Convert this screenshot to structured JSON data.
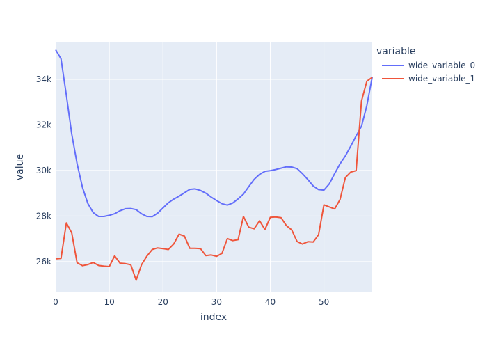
{
  "chart_data": {
    "type": "line",
    "xlabel": "index",
    "ylabel": "value",
    "xlim": [
      0,
      59
    ],
    "ylim": [
      24650,
      35650
    ],
    "x_ticks": [
      0,
      10,
      20,
      30,
      40,
      50
    ],
    "x_tick_labels": [
      "0",
      "10",
      "20",
      "30",
      "40",
      "50"
    ],
    "y_ticks": [
      26000,
      28000,
      30000,
      32000,
      34000
    ],
    "y_tick_labels": [
      "26k",
      "28k",
      "30k",
      "32k",
      "34k"
    ],
    "grid": true,
    "legend": {
      "title": "variable",
      "position": "right"
    },
    "colors": {
      "plot_bg": "#E5ECF6",
      "grid": "#ffffff",
      "text": "#2a3f5f"
    },
    "series": [
      {
        "name": "wide_variable_0",
        "color": "#636EFA",
        "values": [
          35300,
          34900,
          33300,
          31600,
          30300,
          29250,
          28550,
          28150,
          27980,
          27980,
          28030,
          28100,
          28230,
          28320,
          28330,
          28280,
          28100,
          27980,
          27970,
          28120,
          28350,
          28580,
          28740,
          28870,
          29020,
          29170,
          29190,
          29120,
          29000,
          28830,
          28680,
          28540,
          28480,
          28570,
          28750,
          28960,
          29290,
          29610,
          29830,
          29960,
          29990,
          30040,
          30100,
          30160,
          30150,
          30080,
          29860,
          29600,
          29320,
          29160,
          29140,
          29410,
          29860,
          30290,
          30640,
          31070,
          31520,
          31940,
          32850,
          34100
        ]
      },
      {
        "name": "wide_variable_1",
        "color": "#EF553B",
        "values": [
          26120,
          26140,
          27700,
          27260,
          25950,
          25820,
          25870,
          25960,
          25830,
          25800,
          25780,
          26250,
          25930,
          25910,
          25860,
          25180,
          25860,
          26240,
          26530,
          26600,
          26570,
          26530,
          26770,
          27200,
          27120,
          26580,
          26580,
          26570,
          26260,
          26290,
          26230,
          26360,
          27010,
          26920,
          26960,
          27980,
          27510,
          27440,
          27790,
          27410,
          27940,
          27960,
          27930,
          27580,
          27390,
          26880,
          26770,
          26870,
          26860,
          27180,
          28490,
          28400,
          28310,
          28720,
          29690,
          29930,
          29990,
          33050,
          33920,
          34090
        ]
      }
    ]
  }
}
